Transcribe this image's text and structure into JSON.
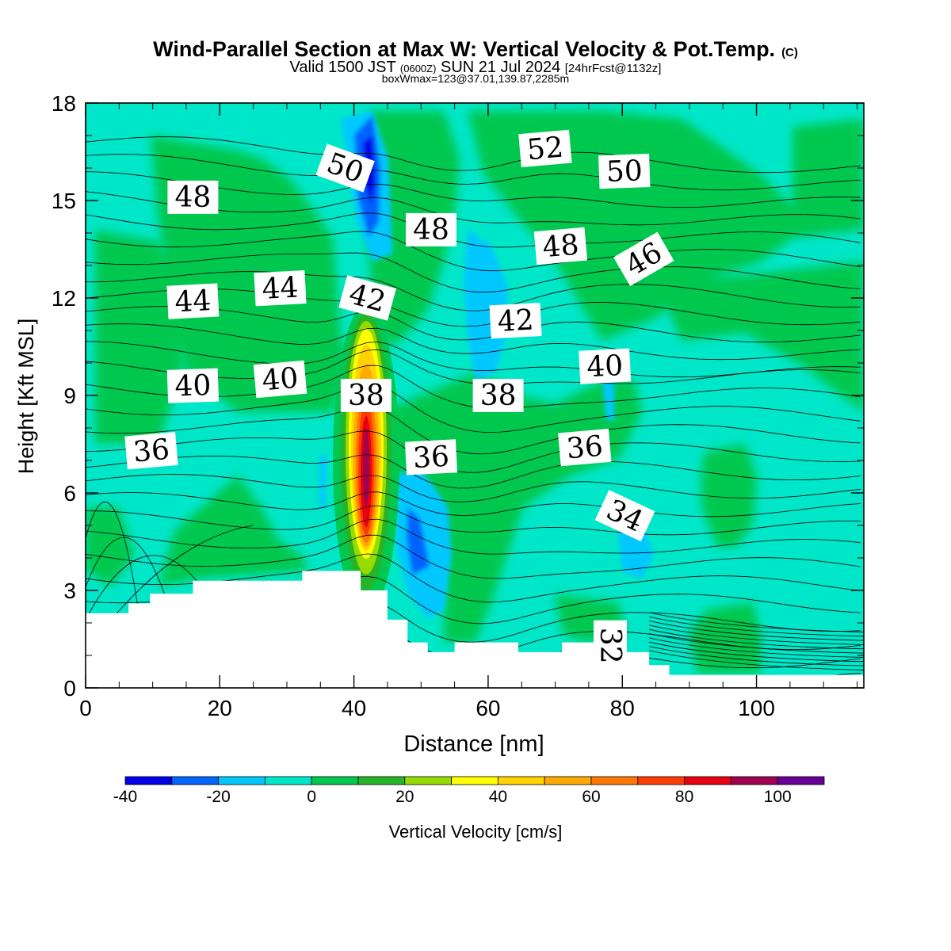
{
  "chart_data": {
    "type": "heatmap",
    "title": "Wind-Parallel Section at Max W: Vertical Velocity & Pot.Temp.",
    "title_mark": "(C)",
    "subtitle_parts": [
      "Valid 1500 JST",
      "(0600Z)",
      "SUN 21 Jul 2024",
      "[24hrFcst@1132z]"
    ],
    "subtitle2": "boxWmax=123@37.01,139.87,2285m",
    "xlabel": "Distance [nm]",
    "ylabel": "Height [Kft MSL]",
    "xlim": [
      0,
      116
    ],
    "ylim": [
      0,
      18
    ],
    "xticks": [
      0,
      20,
      40,
      60,
      80,
      100
    ],
    "yticks": [
      0,
      3,
      6,
      9,
      12,
      15,
      18
    ],
    "colorbar": {
      "label": "Vertical Velocity [cm/s]",
      "bounds": [
        -40,
        -30,
        -20,
        -10,
        0,
        10,
        20,
        30,
        40,
        50,
        60,
        70,
        80,
        90,
        100,
        110
      ],
      "colors": [
        "#0000e6",
        "#0064ff",
        "#00c8ff",
        "#00e6c8",
        "#00c850",
        "#28b428",
        "#96dc00",
        "#ffff00",
        "#ffd200",
        "#ffaa00",
        "#ff7800",
        "#ff3c00",
        "#e60014",
        "#a00050",
        "#640096"
      ],
      "tick_labels": [
        "-40",
        "-20",
        "0",
        "20",
        "40",
        "60",
        "80",
        "100"
      ],
      "tick_values": [
        -40,
        -20,
        0,
        20,
        40,
        60,
        80,
        100
      ]
    },
    "terrain": [
      [
        0,
        2.3
      ],
      [
        6.4,
        2.3
      ],
      [
        6.4,
        2.6
      ],
      [
        9.6,
        2.6
      ],
      [
        9.6,
        2.9
      ],
      [
        16,
        2.9
      ],
      [
        16,
        3.3
      ],
      [
        32.3,
        3.3
      ],
      [
        32.3,
        3.6
      ],
      [
        40,
        3.6
      ],
      [
        41,
        3.6
      ],
      [
        41,
        3.0
      ],
      [
        45,
        3.0
      ],
      [
        45,
        2.1
      ],
      [
        48,
        2.1
      ],
      [
        48,
        1.4
      ],
      [
        51,
        1.4
      ],
      [
        51,
        1.1
      ],
      [
        55,
        1.1
      ],
      [
        55,
        1.4
      ],
      [
        64.5,
        1.4
      ],
      [
        64.5,
        1.1
      ],
      [
        71,
        1.1
      ],
      [
        71,
        1.4
      ],
      [
        80.5,
        1.4
      ],
      [
        80.5,
        1.1
      ],
      [
        84,
        1.1
      ],
      [
        84,
        0.7
      ],
      [
        87,
        0.7
      ],
      [
        87,
        0.4
      ],
      [
        116,
        0.4
      ]
    ],
    "theta_labels": [
      {
        "text": "52",
        "x": 68.5,
        "y": 16.6,
        "rot": -5
      },
      {
        "text": "50",
        "x": 38.7,
        "y": 16.0,
        "rot": 20
      },
      {
        "text": "50",
        "x": 80.3,
        "y": 15.9,
        "rot": -2
      },
      {
        "text": "48",
        "x": 16.0,
        "y": 15.1,
        "rot": 0
      },
      {
        "text": "48",
        "x": 51.5,
        "y": 14.1,
        "rot": 0
      },
      {
        "text": "48",
        "x": 70.8,
        "y": 13.6,
        "rot": -5
      },
      {
        "text": "46",
        "x": 83.2,
        "y": 13.2,
        "rot": -30
      },
      {
        "text": "44",
        "x": 16.0,
        "y": 11.9,
        "rot": -3
      },
      {
        "text": "44",
        "x": 29.0,
        "y": 12.3,
        "rot": -3
      },
      {
        "text": "42",
        "x": 42.0,
        "y": 12.0,
        "rot": 15
      },
      {
        "text": "42",
        "x": 64.1,
        "y": 11.3,
        "rot": -3
      },
      {
        "text": "40",
        "x": 16.0,
        "y": 9.3,
        "rot": -2
      },
      {
        "text": "40",
        "x": 29.0,
        "y": 9.5,
        "rot": -5
      },
      {
        "text": "40",
        "x": 77.4,
        "y": 9.9,
        "rot": -3
      },
      {
        "text": "38",
        "x": 41.8,
        "y": 9.0,
        "rot": 0
      },
      {
        "text": "38",
        "x": 61.5,
        "y": 9.0,
        "rot": 0
      },
      {
        "text": "36",
        "x": 9.8,
        "y": 7.3,
        "rot": -5
      },
      {
        "text": "36",
        "x": 51.5,
        "y": 7.1,
        "rot": -3
      },
      {
        "text": "36",
        "x": 74.4,
        "y": 7.4,
        "rot": -5
      },
      {
        "text": "34",
        "x": 80.4,
        "y": 5.3,
        "rot": 25
      },
      {
        "text": "32",
        "x": 78.2,
        "y": 1.3,
        "rot": 90
      }
    ]
  }
}
